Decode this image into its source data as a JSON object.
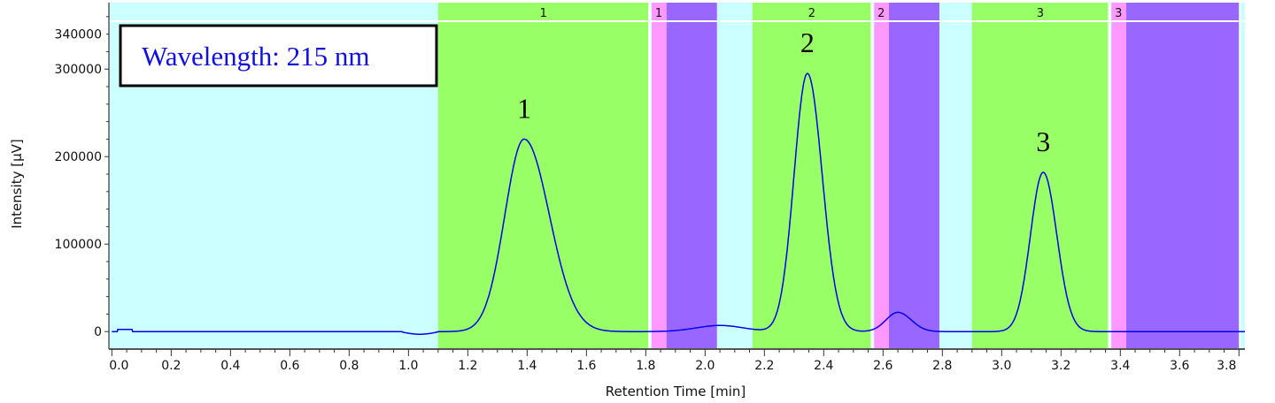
{
  "chart_data": {
    "type": "line",
    "title": "",
    "xlabel": "Retention Time [min]",
    "ylabel": "Intensity [µV]",
    "xlim": [
      -0.01,
      3.82
    ],
    "ylim": [
      -20000,
      376000
    ],
    "x_ticks": [
      "0.0",
      "0.2",
      "0.4",
      "0.6",
      "0.8",
      "1.0",
      "1.2",
      "1.4",
      "1.6",
      "1.8",
      "2.0",
      "2.2",
      "2.4",
      "2.6",
      "2.8",
      "3.0",
      "3.2",
      "3.4",
      "3.6",
      "3.8"
    ],
    "y_ticks": [
      "0",
      "100000",
      "200000",
      "300000",
      "340000"
    ],
    "grid": false,
    "legend": "none",
    "annotation": "Wavelength: 215 nm",
    "colors": {
      "background": "#ccffff",
      "peak_window": "#99ff66",
      "pink_window": "#ff99ff",
      "purple_window": "#9966ff",
      "trace": "#0000ee"
    },
    "bands": [
      {
        "start": 1.1,
        "end": 1.81,
        "kind": "peak_window",
        "label": "1"
      },
      {
        "start": 1.82,
        "end": 1.87,
        "kind": "pink_window",
        "label": "1"
      },
      {
        "start": 1.87,
        "end": 2.04,
        "kind": "purple_window",
        "label": ""
      },
      {
        "start": 2.16,
        "end": 2.56,
        "kind": "peak_window",
        "label": "2"
      },
      {
        "start": 2.57,
        "end": 2.62,
        "kind": "pink_window",
        "label": "2"
      },
      {
        "start": 2.62,
        "end": 2.79,
        "kind": "purple_window",
        "label": ""
      },
      {
        "start": 2.9,
        "end": 3.36,
        "kind": "peak_window",
        "label": "3"
      },
      {
        "start": 3.37,
        "end": 3.42,
        "kind": "pink_window",
        "label": "3"
      },
      {
        "start": 3.42,
        "end": 3.8,
        "kind": "purple_window",
        "label": ""
      }
    ],
    "peaks": [
      {
        "label": "1",
        "retention_time": 1.39,
        "height": 220000,
        "width_left": 0.065,
        "width_right": 0.085
      },
      {
        "label": "",
        "retention_time": 2.05,
        "height": 7000,
        "width_left": 0.08,
        "width_right": 0.08
      },
      {
        "label": "2",
        "retention_time": 2.345,
        "height": 295000,
        "width_left": 0.045,
        "width_right": 0.05
      },
      {
        "label": "",
        "retention_time": 2.65,
        "height": 22000,
        "width_left": 0.04,
        "width_right": 0.045
      },
      {
        "label": "3",
        "retention_time": 3.14,
        "height": 182000,
        "width_left": 0.043,
        "width_right": 0.046
      }
    ]
  }
}
